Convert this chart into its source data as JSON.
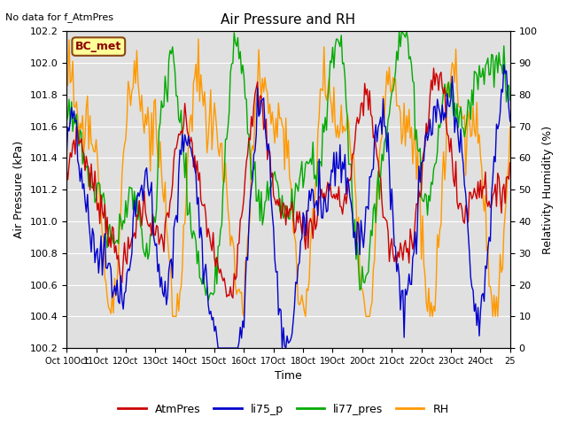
{
  "title": "Air Pressure and RH",
  "top_left_text": "No data for f_AtmPres",
  "annotation_text": "BC_met",
  "xlabel": "Time",
  "ylabel_left": "Air Pressure (kPa)",
  "ylabel_right": "Relativity Humidity (%)",
  "ylim_left": [
    100.2,
    102.2
  ],
  "ylim_right": [
    0,
    100
  ],
  "xtick_positions": [
    0,
    24,
    48,
    72,
    96,
    120,
    144,
    168,
    192,
    216,
    240,
    264,
    288,
    312,
    336,
    360
  ],
  "xtick_labels": [
    "Oct 10Oct",
    "11Oct",
    "12Oct",
    "13Oct",
    "14Oct",
    "15Oct",
    "16Oct",
    "17Oct",
    "18Oct",
    "19Oct",
    "20Oct",
    "21Oct",
    "22Oct",
    "23Oct",
    "24Oct",
    "25"
  ],
  "yticks_left": [
    100.2,
    100.4,
    100.6,
    100.8,
    101.0,
    101.2,
    101.4,
    101.6,
    101.8,
    102.0,
    102.2
  ],
  "yticks_right": [
    0,
    10,
    20,
    30,
    40,
    50,
    60,
    70,
    80,
    90,
    100
  ],
  "colors": {
    "AtmPres": "#cc0000",
    "li75_p": "#0000cc",
    "li77_pres": "#00aa00",
    "RH": "#ff9900"
  },
  "legend_labels": [
    "AtmPres",
    "li75_p",
    "li77_pres",
    "RH"
  ],
  "bg_color": "#e0e0e0",
  "fig_bg": "#ffffff",
  "annotation_color": "#8B0000",
  "annotation_bg": "#ffff99",
  "annotation_edge": "#8B4513"
}
